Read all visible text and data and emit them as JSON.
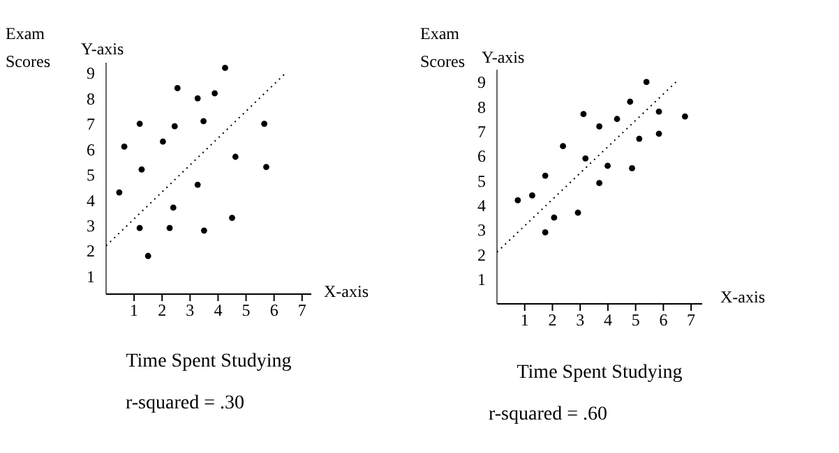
{
  "chart_data": [
    {
      "type": "scatter",
      "xlabel": "Time Spent Studying",
      "ylabel": "Exam Scores",
      "annotations": [
        "Y-axis",
        "X-axis",
        "r-squared = .30"
      ],
      "xlim": [
        0,
        7.33
      ],
      "ylim": [
        0.3,
        9.4
      ],
      "xticks": [
        1,
        2,
        3,
        4,
        5,
        6,
        7
      ],
      "yticks": [
        1,
        2,
        3,
        4,
        5,
        6,
        7,
        8,
        9
      ],
      "grid": false,
      "legend": false,
      "series": [
        {
          "color": "#000000",
          "marker": "circle",
          "x": [
            4.25,
            2.55,
            3.27,
            3.88,
            1.2,
            2.45,
            3.48,
            5.65,
            0.65,
            2.03,
            4.62,
            1.27,
            5.72,
            0.47,
            3.27,
            2.4,
            1.2,
            2.27,
            3.5,
            4.5,
            1.5
          ],
          "values": [
            9.2,
            8.4,
            8.0,
            8.2,
            7.0,
            6.9,
            7.1,
            7.0,
            6.1,
            6.3,
            5.7,
            5.2,
            5.3,
            4.3,
            4.6,
            3.7,
            2.9,
            2.9,
            2.8,
            3.3,
            1.8
          ]
        },
        {
          "type": "line",
          "color": "#000000",
          "line_style": "dotted",
          "x": [
            0,
            6.42
          ],
          "values": [
            2.2,
            9.0
          ]
        }
      ]
    },
    {
      "type": "scatter",
      "xlabel": "Time Spent Studying",
      "ylabel": "Exam Scores",
      "annotations": [
        "Y-axis",
        "X-axis",
        "r-squared = .60"
      ],
      "xlim": [
        0,
        7.4
      ],
      "ylim": [
        0,
        9.5
      ],
      "xticks": [
        1,
        2,
        3,
        4,
        5,
        6,
        7
      ],
      "yticks": [
        1,
        2,
        3,
        4,
        5,
        6,
        7,
        8,
        9
      ],
      "grid": false,
      "legend": false,
      "series": [
        {
          "color": "#000000",
          "marker": "circle",
          "x": [
            5.39,
            4.8,
            5.84,
            3.12,
            4.33,
            3.69,
            6.78,
            5.13,
            5.84,
            2.38,
            3.19,
            3.99,
            4.87,
            1.74,
            3.69,
            1.27,
            0.75,
            2.06,
            2.92,
            1.74
          ],
          "values": [
            9.0,
            8.2,
            7.8,
            7.7,
            7.5,
            7.2,
            7.6,
            6.7,
            6.9,
            6.4,
            5.9,
            5.6,
            5.5,
            5.2,
            4.9,
            4.4,
            4.2,
            3.5,
            3.7,
            2.9
          ]
        },
        {
          "type": "line",
          "color": "#000000",
          "line_style": "dotted",
          "x": [
            0,
            6.55
          ],
          "values": [
            2.1,
            9.1
          ]
        }
      ]
    }
  ]
}
